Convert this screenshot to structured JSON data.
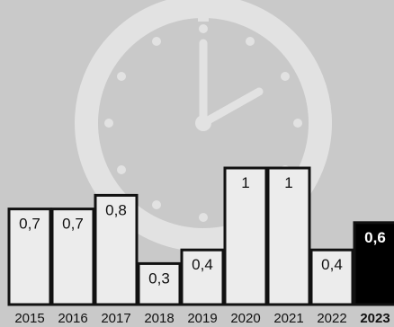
{
  "chart_data": {
    "type": "bar",
    "title": "",
    "xlabel": "",
    "ylabel": "",
    "categories": [
      "2015",
      "2016",
      "2017",
      "2018",
      "2019",
      "2020",
      "2021",
      "2022",
      "2023"
    ],
    "values": [
      0.7,
      0.7,
      0.8,
      0.3,
      0.4,
      1,
      1,
      0.4,
      0.6
    ],
    "value_labels": [
      "0,7",
      "0,7",
      "0,8",
      "0,3",
      "0,4",
      "1",
      "1",
      "0,4",
      "0,6"
    ],
    "highlight_category": "2023",
    "ylim": [
      0,
      1
    ],
    "grid": false,
    "legend": "none",
    "background_icon": "stopwatch-icon",
    "colors": {
      "background": "#c9c9c9",
      "bar_fill": "#ececec",
      "bar_stroke": "#111111",
      "highlight_fill": "#000000",
      "highlight_label": "#ffffff",
      "icon": "#e2e2e2"
    }
  }
}
